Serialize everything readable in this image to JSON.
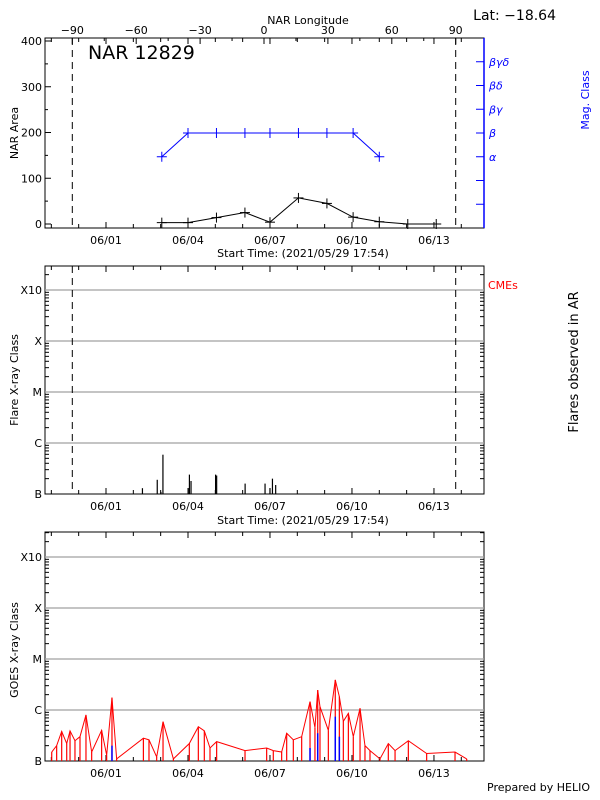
{
  "figure": {
    "lat_label": "Lat: −18.64",
    "prepared_by": "Prepared by HELIO",
    "colors": {
      "axis": "#000000",
      "mag_class": "#0000ff",
      "goes": "#ff0000",
      "goes_flare": "#0000ff",
      "cme": "#ff0000",
      "grid": "#a0a0a0"
    }
  },
  "chart_data": [
    {
      "type": "line",
      "title": "NAR 12829",
      "xlabel": "Start Time: (2021/05/29 17:54)",
      "ylabel": "NAR Area",
      "ylabel_right": "Mag. Class",
      "x2label": "NAR Longitude",
      "x_ticks": [
        "06/01",
        "06/04",
        "06/07",
        "06/10",
        "06/13"
      ],
      "x_range": [
        "05/29 17:54",
        "06/14 20:00"
      ],
      "y_ticks": [
        0,
        100,
        200,
        300,
        400
      ],
      "ylim": [
        -9,
        406
      ],
      "x2_ticks": [
        -90,
        -60,
        -30,
        0,
        30,
        60,
        90
      ],
      "limb_longitudes": [
        -90,
        90
      ],
      "mag_class_levels": [
        "α",
        "β",
        "βγ",
        "βδ",
        "βγδ"
      ],
      "area_series": {
        "dates": [
          "06/03 01:00",
          "06/04 00:00",
          "06/05 01:00",
          "06/06 02:00",
          "06/07 00:00",
          "06/08 01:00",
          "06/09 02:00",
          "06/10 01:00",
          "06/11 00:00",
          "06/12 01:00",
          "06/13 02:00"
        ],
        "values": [
          3,
          3,
          14,
          25,
          4,
          57,
          45,
          15,
          5,
          0,
          0
        ]
      },
      "mag_series": {
        "dates": [
          "06/03 01:00",
          "06/04 00:00",
          "06/05 01:00",
          "06/06 02:00",
          "06/07 00:00",
          "06/08 01:00",
          "06/09 02:00",
          "06/10 01:00",
          "06/11 00:00"
        ],
        "classes": [
          "α",
          "β",
          "β",
          "β",
          "β",
          "β",
          "β",
          "β",
          "α"
        ]
      }
    },
    {
      "type": "bar",
      "xlabel": "Start Time: (2021/05/29 17:54)",
      "ylabel": "Flare X-ray Class",
      "ylabel_right": "Flares observed in AR",
      "legend_right": "CMEs",
      "x_ticks": [
        "06/01",
        "06/04",
        "06/07",
        "06/10",
        "06/13"
      ],
      "y_ticks": [
        "B",
        "C",
        "M",
        "X",
        "X10"
      ],
      "y_scale": "log",
      "grid": true,
      "limb_longitudes": [
        -90,
        90
      ],
      "flares": [
        {
          "time": "06/02 08:00",
          "class": "B1.3"
        },
        {
          "time": "06/02 21:00",
          "class": "B1.9"
        },
        {
          "time": "06/03 00:15",
          "class": "B1.1"
        },
        {
          "time": "06/03 02:00",
          "class": "B5.9"
        },
        {
          "time": "06/04 00:15",
          "class": "B1.3"
        },
        {
          "time": "06/04 01:15",
          "class": "B2.4"
        },
        {
          "time": "06/04 02:40",
          "class": "B1.8"
        },
        {
          "time": "06/05 00:15",
          "class": "B2.4"
        },
        {
          "time": "06/05 01:10",
          "class": "B2.3"
        },
        {
          "time": "06/06 02:10",
          "class": "B1.6"
        },
        {
          "time": "06/06 19:40",
          "class": "B1.6"
        },
        {
          "time": "06/07 00:00",
          "class": "B1.3"
        },
        {
          "time": "06/07 02:10",
          "class": "B2.0"
        },
        {
          "time": "06/07 05:00",
          "class": "B1.5"
        }
      ]
    },
    {
      "type": "line",
      "ylabel": "GOES X-ray Class",
      "x_ticks": [
        "06/01",
        "06/04",
        "06/07",
        "06/10",
        "06/13"
      ],
      "y_ticks": [
        "B",
        "C",
        "M",
        "X",
        "X10"
      ],
      "y_scale": "log",
      "grid": true,
      "goes_flux_B_units": {
        "times": [
          "05/30 00:20",
          "05/30 04:40",
          "05/30 09:05",
          "05/30 13:30",
          "05/30 16:25",
          "05/30 20:45",
          "05/31 01:10",
          "05/31 06:25",
          "05/31 11:25",
          "05/31 20:10",
          "06/01 00:35",
          "06/01 05:15",
          "06/01 09:20",
          "06/02 08:50",
          "06/02 13:45",
          "06/02 20:30",
          "06/03 02:05",
          "06/03 11:10",
          "06/04 01:10",
          "06/04 09:05",
          "06/04 14:20",
          "06/04 19:20",
          "06/05 01:10",
          "06/06 02:05",
          "06/06 21:05",
          "06/07 02:55",
          "06/07 10:15",
          "06/07 14:40",
          "06/07 20:30",
          "06/08 03:50",
          "06/08 11:10",
          "06/08 15:30",
          "06/08 17:55",
          "06/08 19:55",
          "06/09 03:15",
          "06/09 09:20",
          "06/09 12:55",
          "06/09 16:25",
          "06/09 20:50",
          "06/10 01:10",
          "06/10 07:05",
          "06/10 11:25",
          "06/10 15:50",
          "06/11 00:35",
          "06/11 07:55",
          "06/11 13:50",
          "06/12 01:30",
          "06/12 17:35",
          "06/13 18:30",
          "06/14 04:45"
        ],
        "values": [
          1.5,
          2.0,
          3.8,
          2.2,
          3.9,
          2.5,
          3.0,
          8.0,
          1.5,
          4.0,
          1.3,
          17.5,
          1.1,
          2.8,
          2.6,
          1.2,
          5.9,
          1.1,
          2.2,
          4.7,
          3.9,
          1.8,
          2.4,
          1.6,
          1.8,
          1.6,
          1.5,
          3.5,
          2.6,
          3.0,
          14.6,
          4.5,
          24.6,
          11.6,
          4.0,
          38.9,
          18.3,
          6.0,
          8.6,
          3.0,
          10.8,
          2.0,
          1.6,
          1.1,
          2.2,
          1.6,
          2.5,
          1.4,
          1.5,
          1.1
        ]
      },
      "flare_markers_B_units": {
        "times": [
          "06/01 05:15",
          "06/08 11:10",
          "06/08 17:55",
          "06/09 09:20",
          "06/09 12:55"
        ],
        "values": [
          2.0,
          1.8,
          3.5,
          7.4,
          3.0
        ]
      }
    }
  ]
}
